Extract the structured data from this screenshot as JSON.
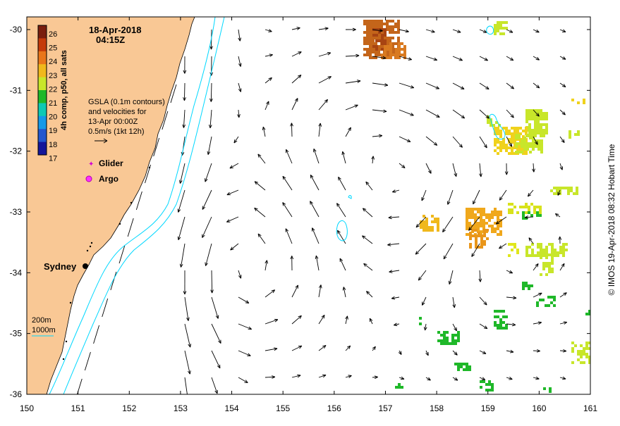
{
  "map": {
    "date_line": "18-Apr-2018",
    "time_line": "04:15Z",
    "colorbar": {
      "label": "4h comp, p50, all sats",
      "ticks": [
        "26",
        "25",
        "24",
        "23",
        "22",
        "21",
        "20",
        "19",
        "18",
        "17"
      ],
      "colors": [
        "#7a1e0e",
        "#c43a0a",
        "#e9761a",
        "#f0b81c",
        "#c8e62a",
        "#1fb829",
        "#0ec9b4",
        "#1599e8",
        "#2357cf",
        "#14169a"
      ]
    },
    "gsla_note": [
      "GSLA (0.1m contours)",
      "and velocities for",
      "13-Apr 00:00Z",
      "0.5m/s (1kt 12h)"
    ],
    "legend": {
      "glider": "Glider",
      "argo": "Argo"
    },
    "city": "Sydney",
    "depth_labels": [
      "200m",
      "1000m"
    ],
    "x_ticks": [
      "150",
      "151",
      "152",
      "153",
      "154",
      "155",
      "156",
      "157",
      "158",
      "159",
      "160",
      "161"
    ],
    "y_ticks": [
      "-30",
      "-31",
      "-32",
      "-33",
      "-34",
      "-35",
      "-36"
    ],
    "credit": "© IMOS 19-Apr-2018 08:32 Hobart Time",
    "colors": {
      "land": "#f9c895",
      "contour": "#00d8ff",
      "arrow": "#000000"
    }
  }
}
